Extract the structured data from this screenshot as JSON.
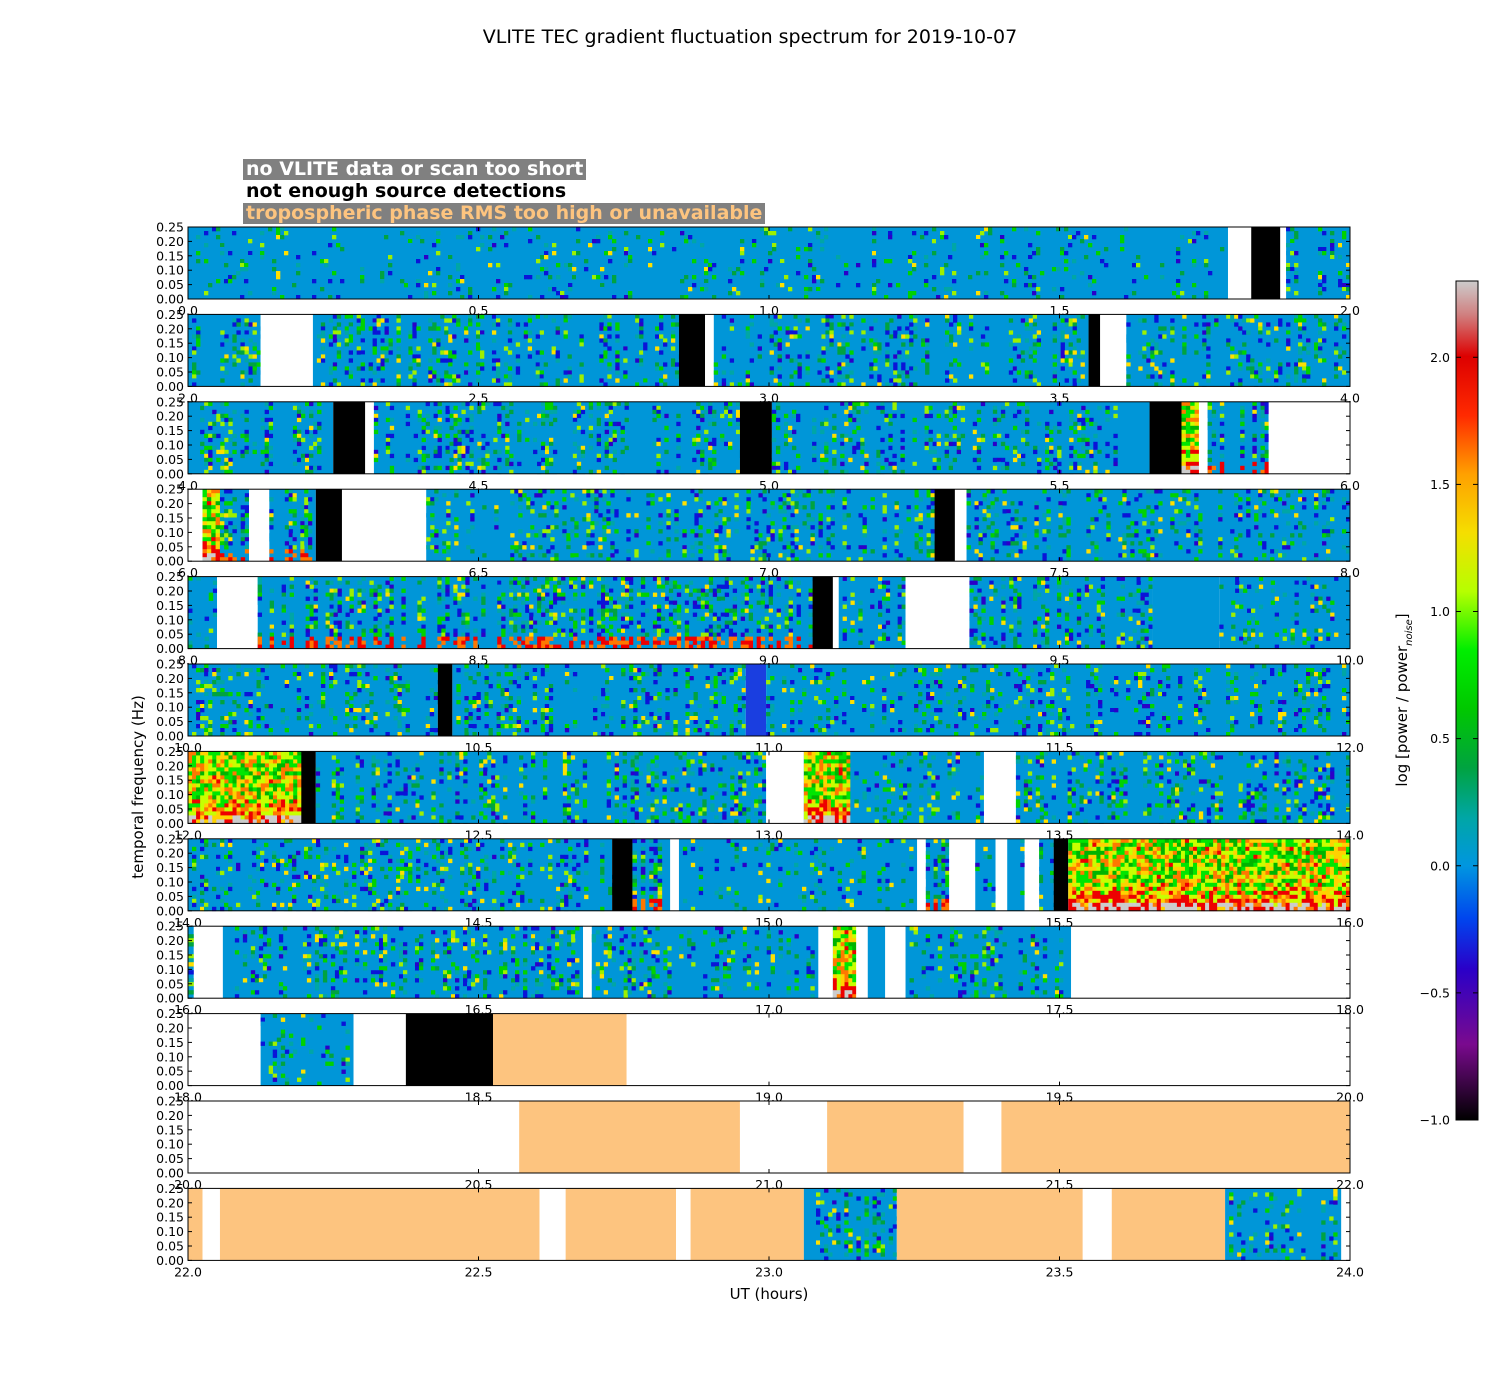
{
  "title": "VLITE TEC gradient fluctuation spectrum for 2019-10-07",
  "legend": [
    {
      "label": "no VLITE data or scan too short",
      "color": "#ffffff"
    },
    {
      "label": "not enough source detections",
      "color": "#000000"
    },
    {
      "label": "tropospheric phase RMS too high or unavailable",
      "color": "#fdc47f"
    }
  ],
  "xlabel": "UT (hours)",
  "ylabel": "temporal frequency (Hz)",
  "colorbar": {
    "label_main": "log [power / power",
    "label_sub": "noise",
    "label_end": "]",
    "range": [
      -1.0,
      2.3
    ],
    "ticks": [
      "−1.0",
      "−0.5",
      "0.0",
      "0.5",
      "1.0",
      "1.5",
      "2.0"
    ],
    "tick_values": [
      -1.0,
      -0.5,
      0.0,
      0.5,
      1.0,
      1.5,
      2.0
    ]
  },
  "chart_data": {
    "type": "heatmap",
    "yticks": [
      "0.00",
      "0.05",
      "0.10",
      "0.15",
      "0.20",
      "0.25"
    ],
    "ylim": [
      0,
      0.25
    ],
    "panels": [
      {
        "xlim": [
          0,
          2
        ],
        "xticks": [
          "0.0",
          "0.5",
          "1.0",
          "1.5",
          "2.0"
        ],
        "segments": [
          {
            "s": 0.0,
            "e": 0.0,
            "k": "white"
          },
          {
            "s": 0.0,
            "e": 1.79,
            "k": "data",
            "a": 0.18
          },
          {
            "s": 1.79,
            "e": 1.83,
            "k": "white"
          },
          {
            "s": 1.83,
            "e": 1.88,
            "k": "black"
          },
          {
            "s": 1.88,
            "e": 1.89,
            "k": "white"
          },
          {
            "s": 1.89,
            "e": 2.0,
            "k": "data",
            "a": 0.45
          }
        ]
      },
      {
        "xlim": [
          2,
          4
        ],
        "xticks": [
          "2.0",
          "2.5",
          "3.0",
          "3.5",
          "4.0"
        ],
        "segments": [
          {
            "s": 2.0,
            "e": 2.125,
            "k": "data",
            "a": 0.5
          },
          {
            "s": 2.125,
            "e": 2.215,
            "k": "white"
          },
          {
            "s": 2.215,
            "e": 2.845,
            "k": "data",
            "a": 0.45
          },
          {
            "s": 2.845,
            "e": 2.89,
            "k": "black"
          },
          {
            "s": 2.89,
            "e": 2.905,
            "k": "white"
          },
          {
            "s": 2.905,
            "e": 3.55,
            "k": "data",
            "a": 0.4
          },
          {
            "s": 3.55,
            "e": 3.57,
            "k": "black"
          },
          {
            "s": 3.57,
            "e": 3.615,
            "k": "white"
          },
          {
            "s": 3.615,
            "e": 4.0,
            "k": "data",
            "a": 0.4
          }
        ]
      },
      {
        "xlim": [
          4,
          6
        ],
        "xticks": [
          "4.0",
          "4.5",
          "5.0",
          "5.5",
          "6.0"
        ],
        "segments": [
          {
            "s": 4.0,
            "e": 4.25,
            "k": "data",
            "a": 0.45
          },
          {
            "s": 4.25,
            "e": 4.305,
            "k": "black"
          },
          {
            "s": 4.305,
            "e": 4.32,
            "k": "white"
          },
          {
            "s": 4.32,
            "e": 4.95,
            "k": "data",
            "a": 0.45
          },
          {
            "s": 4.95,
            "e": 5.005,
            "k": "black"
          },
          {
            "s": 5.005,
            "e": 5.655,
            "k": "data",
            "a": 0.4
          },
          {
            "s": 5.655,
            "e": 5.71,
            "k": "black"
          },
          {
            "s": 5.71,
            "e": 5.74,
            "k": "data",
            "a": 1.0,
            "hot": true
          },
          {
            "s": 5.74,
            "e": 5.755,
            "k": "white"
          },
          {
            "s": 5.755,
            "e": 5.86,
            "k": "data",
            "a": 0.6,
            "low": true
          },
          {
            "s": 5.86,
            "e": 6.0,
            "k": "white"
          }
        ]
      },
      {
        "xlim": [
          6,
          8
        ],
        "xticks": [
          "6.0",
          "6.5",
          "7.0",
          "7.5",
          "8.0"
        ],
        "segments": [
          {
            "s": 6.0,
            "e": 6.025,
            "k": "white"
          },
          {
            "s": 6.025,
            "e": 6.055,
            "k": "data",
            "a": 0.8,
            "hot": true
          },
          {
            "s": 6.055,
            "e": 6.105,
            "k": "data",
            "a": 0.55,
            "low": true
          },
          {
            "s": 6.105,
            "e": 6.14,
            "k": "white"
          },
          {
            "s": 6.14,
            "e": 6.22,
            "k": "data",
            "a": 0.6,
            "low": true
          },
          {
            "s": 6.22,
            "e": 6.265,
            "k": "black"
          },
          {
            "s": 6.265,
            "e": 6.41,
            "k": "white"
          },
          {
            "s": 6.41,
            "e": 7.285,
            "k": "data",
            "a": 0.4
          },
          {
            "s": 7.285,
            "e": 7.32,
            "k": "black"
          },
          {
            "s": 7.32,
            "e": 7.34,
            "k": "white"
          },
          {
            "s": 7.34,
            "e": 8.0,
            "k": "data",
            "a": 0.35
          }
        ]
      },
      {
        "xlim": [
          8,
          10
        ],
        "xticks": [
          "8.0",
          "8.5",
          "9.0",
          "9.5",
          "10.0"
        ],
        "segments": [
          {
            "s": 8.0,
            "e": 8.05,
            "k": "data",
            "a": 0.3
          },
          {
            "s": 8.05,
            "e": 8.12,
            "k": "white"
          },
          {
            "s": 8.12,
            "e": 9.075,
            "k": "data",
            "a": 0.6,
            "low": true
          },
          {
            "s": 9.075,
            "e": 9.11,
            "k": "black"
          },
          {
            "s": 9.11,
            "e": 9.12,
            "k": "white"
          },
          {
            "s": 9.12,
            "e": 9.235,
            "k": "data",
            "a": 0.45
          },
          {
            "s": 9.235,
            "e": 9.345,
            "k": "white"
          },
          {
            "s": 9.345,
            "e": 9.66,
            "k": "data",
            "a": 0.45
          },
          {
            "s": 9.66,
            "e": 9.775,
            "k": "fill"
          },
          {
            "s": 9.775,
            "e": 10.0,
            "k": "data",
            "a": 0.25
          }
        ]
      },
      {
        "xlim": [
          10,
          12
        ],
        "xticks": [
          "10.0",
          "10.5",
          "11.0",
          "11.5",
          "12.0"
        ],
        "segments": [
          {
            "s": 10.0,
            "e": 10.43,
            "k": "data",
            "a": 0.35
          },
          {
            "s": 10.43,
            "e": 10.455,
            "k": "black"
          },
          {
            "s": 10.455,
            "e": 10.96,
            "k": "data",
            "a": 0.45
          },
          {
            "s": 10.96,
            "e": 10.995,
            "k": "deep"
          },
          {
            "s": 10.995,
            "e": 12.0,
            "k": "data",
            "a": 0.35
          }
        ]
      },
      {
        "xlim": [
          12,
          14
        ],
        "xticks": [
          "12.0",
          "12.5",
          "13.0",
          "13.5",
          "14.0"
        ],
        "segments": [
          {
            "s": 12.0,
            "e": 12.195,
            "k": "data",
            "a": 1.0,
            "hot": true
          },
          {
            "s": 12.195,
            "e": 12.22,
            "k": "black"
          },
          {
            "s": 12.22,
            "e": 12.995,
            "k": "data",
            "a": 0.5
          },
          {
            "s": 12.995,
            "e": 13.06,
            "k": "white"
          },
          {
            "s": 13.06,
            "e": 13.14,
            "k": "data",
            "a": 0.9,
            "hot": true
          },
          {
            "s": 13.14,
            "e": 13.37,
            "k": "data",
            "a": 0.35
          },
          {
            "s": 13.37,
            "e": 13.425,
            "k": "white"
          },
          {
            "s": 13.425,
            "e": 14.0,
            "k": "data",
            "a": 0.45
          }
        ]
      },
      {
        "xlim": [
          14,
          16
        ],
        "xticks": [
          "14.0",
          "14.5",
          "15.0",
          "15.5",
          "16.0"
        ],
        "segments": [
          {
            "s": 14.0,
            "e": 14.73,
            "k": "data",
            "a": 0.4
          },
          {
            "s": 14.73,
            "e": 14.765,
            "k": "black"
          },
          {
            "s": 14.765,
            "e": 14.83,
            "k": "data",
            "a": 0.8,
            "low": true
          },
          {
            "s": 14.83,
            "e": 14.845,
            "k": "white"
          },
          {
            "s": 14.845,
            "e": 15.255,
            "k": "data",
            "a": 0.25
          },
          {
            "s": 15.255,
            "e": 15.27,
            "k": "white"
          },
          {
            "s": 15.27,
            "e": 15.31,
            "k": "data",
            "a": 0.7,
            "low": true
          },
          {
            "s": 15.31,
            "e": 15.355,
            "k": "white"
          },
          {
            "s": 15.355,
            "e": 15.39,
            "k": "data",
            "a": 0.2
          },
          {
            "s": 15.39,
            "e": 15.41,
            "k": "white"
          },
          {
            "s": 15.41,
            "e": 15.44,
            "k": "data",
            "a": 0.4
          },
          {
            "s": 15.44,
            "e": 15.465,
            "k": "white"
          },
          {
            "s": 15.465,
            "e": 15.49,
            "k": "data",
            "a": 0.5
          },
          {
            "s": 15.49,
            "e": 15.515,
            "k": "black"
          },
          {
            "s": 15.515,
            "e": 16.0,
            "k": "data",
            "a": 1.0,
            "hot": true
          }
        ]
      },
      {
        "xlim": [
          16,
          18
        ],
        "xticks": [
          "16.0",
          "16.5",
          "17.0",
          "17.5",
          "18.0"
        ],
        "segments": [
          {
            "s": 16.0,
            "e": 16.01,
            "k": "data",
            "a": 0.6
          },
          {
            "s": 16.01,
            "e": 16.06,
            "k": "white"
          },
          {
            "s": 16.06,
            "e": 16.68,
            "k": "data",
            "a": 0.45
          },
          {
            "s": 16.68,
            "e": 16.695,
            "k": "white"
          },
          {
            "s": 16.695,
            "e": 17.085,
            "k": "data",
            "a": 0.4
          },
          {
            "s": 17.085,
            "e": 17.11,
            "k": "white"
          },
          {
            "s": 17.11,
            "e": 17.15,
            "k": "data",
            "a": 1.0,
            "hot": true
          },
          {
            "s": 17.15,
            "e": 17.17,
            "k": "white"
          },
          {
            "s": 17.17,
            "e": 17.2,
            "k": "data",
            "a": 0.6
          },
          {
            "s": 17.2,
            "e": 17.235,
            "k": "white"
          },
          {
            "s": 17.235,
            "e": 17.52,
            "k": "data",
            "a": 0.4
          },
          {
            "s": 17.52,
            "e": 18.0,
            "k": "white"
          }
        ]
      },
      {
        "xlim": [
          18,
          20
        ],
        "xticks": [
          "18.0",
          "18.5",
          "19.0",
          "19.5",
          "20.0"
        ],
        "segments": [
          {
            "s": 18.0,
            "e": 18.125,
            "k": "white"
          },
          {
            "s": 18.125,
            "e": 18.285,
            "k": "data",
            "a": 0.2
          },
          {
            "s": 18.285,
            "e": 18.375,
            "k": "white"
          },
          {
            "s": 18.375,
            "e": 18.525,
            "k": "black"
          },
          {
            "s": 18.525,
            "e": 18.755,
            "k": "trop"
          },
          {
            "s": 18.755,
            "e": 20.0,
            "k": "white"
          }
        ]
      },
      {
        "xlim": [
          20,
          22
        ],
        "xticks": [
          "20.0",
          "20.5",
          "21.0",
          "21.5",
          "22.0"
        ],
        "segments": [
          {
            "s": 20.0,
            "e": 20.57,
            "k": "white"
          },
          {
            "s": 20.57,
            "e": 20.95,
            "k": "trop"
          },
          {
            "s": 20.95,
            "e": 21.1,
            "k": "white"
          },
          {
            "s": 21.1,
            "e": 21.335,
            "k": "trop"
          },
          {
            "s": 21.335,
            "e": 21.4,
            "k": "white"
          },
          {
            "s": 21.4,
            "e": 22.0,
            "k": "trop"
          }
        ]
      },
      {
        "xlim": [
          22,
          24
        ],
        "xticks": [
          "22.0",
          "22.5",
          "23.0",
          "23.5",
          "24.0"
        ],
        "segments": [
          {
            "s": 22.0,
            "e": 22.025,
            "k": "trop"
          },
          {
            "s": 22.025,
            "e": 22.055,
            "k": "white"
          },
          {
            "s": 22.055,
            "e": 22.605,
            "k": "trop"
          },
          {
            "s": 22.605,
            "e": 22.65,
            "k": "white"
          },
          {
            "s": 22.65,
            "e": 22.84,
            "k": "trop"
          },
          {
            "s": 22.84,
            "e": 22.865,
            "k": "white"
          },
          {
            "s": 22.865,
            "e": 23.06,
            "k": "trop"
          },
          {
            "s": 23.06,
            "e": 23.22,
            "k": "data",
            "a": 0.5
          },
          {
            "s": 23.22,
            "e": 23.54,
            "k": "trop"
          },
          {
            "s": 23.54,
            "e": 23.59,
            "k": "white"
          },
          {
            "s": 23.59,
            "e": 23.785,
            "k": "trop"
          },
          {
            "s": 23.785,
            "e": 23.985,
            "k": "data",
            "a": 0.3
          },
          {
            "s": 23.985,
            "e": 24.0,
            "k": "white"
          }
        ]
      }
    ]
  }
}
